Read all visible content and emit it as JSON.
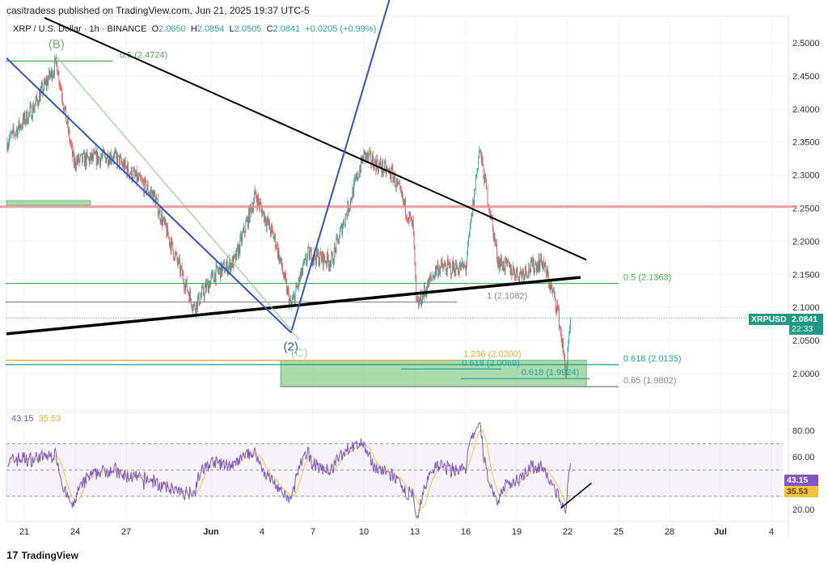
{
  "header": {
    "published": "casitradess published on TradingView.com, Jun 21, 2025 19:37 UTC-5"
  },
  "legend": {
    "symbol": "XRP / U.S. Dollar · 1h · BINANCE",
    "o_label": "O",
    "o": "2.0650",
    "h_label": "H",
    "h": "2.0854",
    "l_label": "L",
    "l": "2.0505",
    "c_label": "C",
    "c": "2.0841",
    "change": "+0.0205 (+0.99%)"
  },
  "price_tag": {
    "symbol": "XRPUSD",
    "price": "2.0841",
    "countdown": "22:33"
  },
  "rsi": {
    "rsi_value": "43.15",
    "ma_value": "35.53"
  },
  "footer": {
    "brand": "TradingView"
  },
  "colors": {
    "up": "#26a69a",
    "down": "#ef5350",
    "rsi": "#7e57c2",
    "rsi_ma": "#f5c33b",
    "fib_green": "#4caf50",
    "red_level": "#f28b8b"
  },
  "chart_data": {
    "type": "candlestick",
    "price_axis": {
      "ticks": [
        "2.5000",
        "2.4500",
        "2.4000",
        "2.3500",
        "2.3000",
        "2.2500",
        "2.2000",
        "2.1500",
        "2.1000",
        "2.0500",
        "2.0000"
      ],
      "range": [
        1.965,
        2.56
      ]
    },
    "rsi_axis": {
      "ticks": [
        "80.00",
        "60.00",
        "20.00"
      ],
      "band": [
        30,
        70
      ],
      "mid": 50
    },
    "time_axis": {
      "ticks": [
        {
          "d": 0,
          "label": "21"
        },
        {
          "d": 3,
          "label": "24"
        },
        {
          "d": 6,
          "label": "27"
        },
        {
          "d": 11,
          "label": "Jun"
        },
        {
          "d": 14,
          "label": "4"
        },
        {
          "d": 17,
          "label": "7"
        },
        {
          "d": 20,
          "label": "10"
        },
        {
          "d": 23,
          "label": "13"
        },
        {
          "d": 26,
          "label": "16"
        },
        {
          "d": 29,
          "label": "19"
        },
        {
          "d": 32,
          "label": "22"
        },
        {
          "d": 35,
          "label": "25"
        },
        {
          "d": 38,
          "label": "28"
        },
        {
          "d": 41,
          "label": "Jul"
        },
        {
          "d": 44,
          "label": "4"
        }
      ]
    },
    "price_path": [
      [
        -1,
        2.35
      ],
      [
        0.5,
        2.4
      ],
      [
        1.9,
        2.47
      ],
      [
        2.9,
        2.32
      ],
      [
        5.2,
        2.33
      ],
      [
        7.6,
        2.27
      ],
      [
        9,
        2.17
      ],
      [
        10,
        2.1
      ],
      [
        11.2,
        2.15
      ],
      [
        12.4,
        2.17
      ],
      [
        13.6,
        2.27
      ],
      [
        14.8,
        2.2
      ],
      [
        15.7,
        2.1
      ],
      [
        16.7,
        2.18
      ],
      [
        18.1,
        2.17
      ],
      [
        20,
        2.33
      ],
      [
        21.7,
        2.3
      ],
      [
        22.9,
        2.22
      ],
      [
        23.1,
        2.1
      ],
      [
        24.3,
        2.16
      ],
      [
        26,
        2.16
      ],
      [
        26.8,
        2.34
      ],
      [
        27.4,
        2.25
      ],
      [
        27.9,
        2.17
      ],
      [
        29.1,
        2.15
      ],
      [
        30.5,
        2.17
      ],
      [
        31.4,
        2.1
      ],
      [
        31.9,
        2.0
      ],
      [
        32.2,
        2.0841
      ]
    ],
    "horizontal_levels": [
      {
        "label": "0.5 (2.4724)",
        "price": 2.4724,
        "from": -1.1,
        "to": 5.2,
        "color": "#4caf50"
      },
      {
        "label": "0.5 (2.1363)",
        "price": 2.1363,
        "from": -1.1,
        "to": 35,
        "color": "#4caf50"
      },
      {
        "label": "1 (2.1082)",
        "price": 2.1082,
        "from": -1.1,
        "to": 25.5,
        "color": "#888888"
      },
      {
        "label": "1.236 (2.0200)",
        "price": 2.02,
        "from": -1.1,
        "to": 25.3,
        "color": "#f0a830"
      },
      {
        "label": "0.618 (2.0135)",
        "price": 2.0135,
        "from": -1.1,
        "to": 35,
        "color": "#26a69a"
      },
      {
        "label": "0.618 (2.0069)",
        "price": 2.0069,
        "from": 22.2,
        "to": 28.1,
        "color": "#26a69a"
      },
      {
        "label": "0.618 (1.9924)",
        "price": 1.9924,
        "from": 25.7,
        "to": 33.3,
        "color": "#26a69a"
      },
      {
        "label": "0.65 (1.9802)",
        "price": 1.9802,
        "from": 15.1,
        "to": 35,
        "color": "#888888"
      },
      {
        "label": "",
        "price": 2.2525,
        "from": -1.5,
        "to": 45.5,
        "color": "#f28b8b"
      }
    ],
    "trendlines": [
      {
        "name": "black-downtrend",
        "p1": [
          1.19,
          2.538
        ],
        "p2": [
          33.1,
          2.172
        ],
        "color": "#000",
        "width": 2
      },
      {
        "name": "black-uptrend",
        "p1": [
          -1.05,
          2.06
        ],
        "p2": [
          32.76,
          2.1455
        ],
        "color": "#000",
        "width": 3.5
      },
      {
        "name": "blue-down",
        "p1": [
          -1.05,
          2.477
        ],
        "p2": [
          15.71,
          2.062
        ],
        "color": "#2f53c8",
        "width": 2
      },
      {
        "name": "blue-up",
        "p1": [
          15.71,
          2.062
        ],
        "p2": [
          21.5,
          2.565
        ],
        "color": "#2f53c8",
        "width": 2
      },
      {
        "name": "green-thin",
        "p1": [
          1.9,
          2.479
        ],
        "p2": [
          16.2,
          2.051
        ],
        "color": "#8fd18f",
        "width": 1.2
      }
    ],
    "zones": [
      {
        "from": 15.1,
        "to": 33.1,
        "p1": 2.02,
        "p2": 1.9802,
        "color": "#66bb6a"
      },
      {
        "from": -1.05,
        "to": 3.9,
        "p1": 2.2615,
        "p2": 2.2545,
        "color": "#66bb6a"
      }
    ],
    "wave_labels": [
      {
        "text": "(B)",
        "d": 1.9,
        "price": 2.492,
        "color": "#66bb6a"
      },
      {
        "text": "(2)",
        "d": 15.7,
        "price": 2.035,
        "color": "#2f53c8"
      },
      {
        "text": "(C)",
        "d": 16.2,
        "price": 2.025,
        "color": "#a5d6a7"
      }
    ],
    "rsi_trendline": {
      "p1": [
        31.6,
        21
      ],
      "p2": [
        33.4,
        40
      ]
    }
  }
}
